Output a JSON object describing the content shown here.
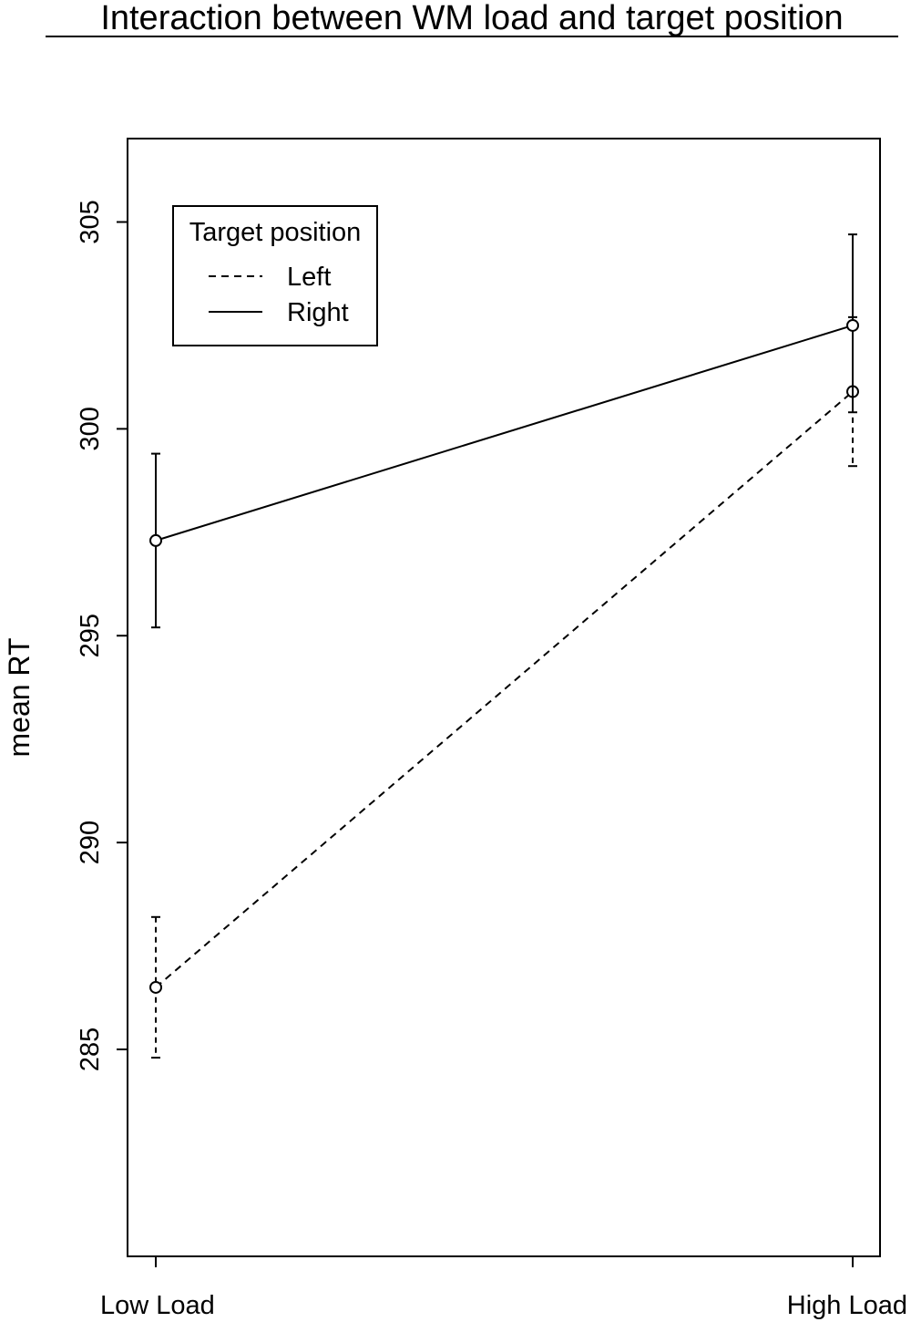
{
  "chart_data": {
    "type": "line",
    "title": "Interaction between WM load and target position",
    "xlabel": "",
    "ylabel": "mean RT",
    "categories": [
      "Low Load",
      "High Load"
    ],
    "ylim": [
      280,
      307
    ],
    "yticks": [
      285,
      290,
      295,
      300,
      305
    ],
    "legend": {
      "title": "Target position",
      "position": "top-left"
    },
    "series": [
      {
        "name": "Left",
        "line_style": "dashed",
        "values": [
          286.5,
          300.9
        ],
        "error_upper": [
          288.2,
          302.7
        ],
        "error_lower": [
          284.8,
          299.1
        ]
      },
      {
        "name": "Right",
        "line_style": "solid",
        "values": [
          297.3,
          302.5
        ],
        "error_upper": [
          299.4,
          304.7
        ],
        "error_lower": [
          295.2,
          300.4
        ]
      }
    ],
    "grid": false,
    "colors": {
      "line": "#000000",
      "background": "#ffffff"
    }
  }
}
